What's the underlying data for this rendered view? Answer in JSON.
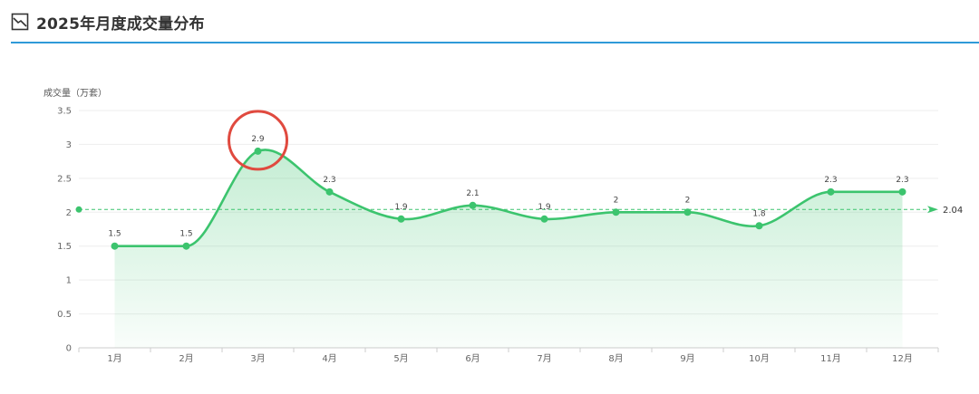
{
  "header": {
    "title": "2025年月度成交量分布",
    "icon": "line-chart-icon"
  },
  "colors": {
    "line": "#3cc46e",
    "area_top": "#3cc46e",
    "accent_rule": "#2f9ad8",
    "highlight_circle": "#e04a3f",
    "grid": "#eeeeee"
  },
  "chart_data": {
    "type": "line",
    "title": "",
    "ylabel": "成交量（万套）",
    "xlabel": "",
    "categories": [
      "1月",
      "2月",
      "3月",
      "4月",
      "5月",
      "6月",
      "7月",
      "8月",
      "9月",
      "10月",
      "11月",
      "12月"
    ],
    "series": [
      {
        "values": [
          1.5,
          1.5,
          2.9,
          2.3,
          1.9,
          2.1,
          1.9,
          2,
          2,
          1.8,
          2.3,
          2.3
        ],
        "labels": [
          "1.5",
          "1.5",
          "2.9",
          "2.3",
          "1.9",
          "2.1",
          "1.9",
          "2",
          "2",
          "1.8",
          "2.3",
          "2.3"
        ],
        "smooth": true,
        "area": true
      }
    ],
    "yticks": [
      "0",
      "0.5",
      "1",
      "1.5",
      "2",
      "2.5",
      "3",
      "3.5"
    ],
    "ylim": [
      0,
      3.5
    ],
    "average_line": {
      "value": 2.04,
      "label": "2.04"
    },
    "highlight_category": "3月",
    "grid": true
  }
}
